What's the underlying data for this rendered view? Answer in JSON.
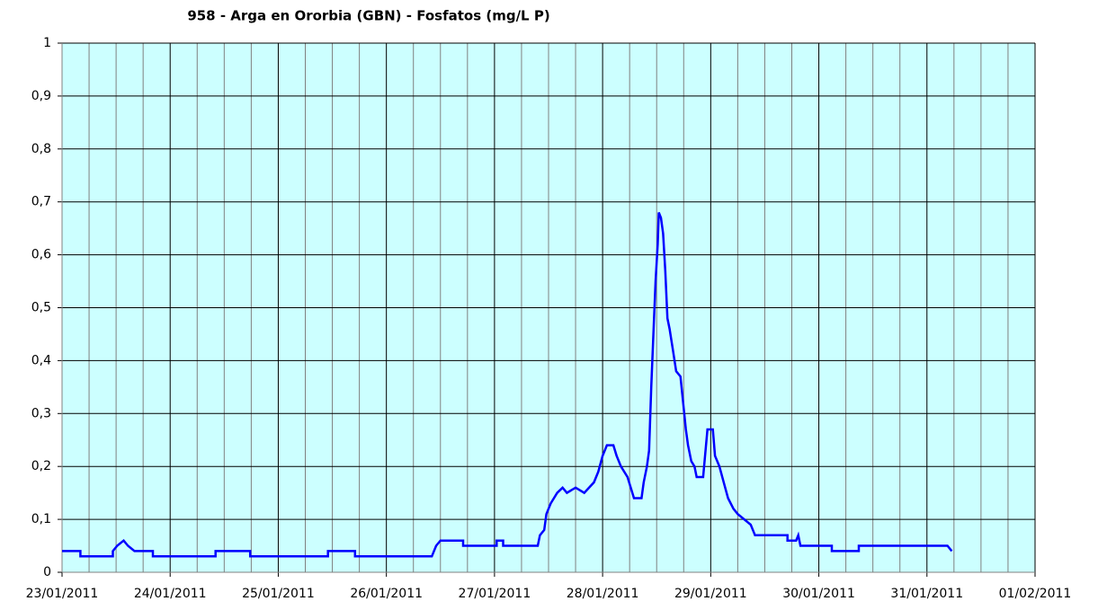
{
  "chart_data": {
    "type": "line",
    "title": "958 - Arga en Ororbia (GBN) - Fosfatos (mg/L P)",
    "x": [
      0,
      0.17,
      0.17,
      0.47,
      0.47,
      0.51,
      0.57,
      0.61,
      0.67,
      0.84,
      0.84,
      1.42,
      1.42,
      1.74,
      1.74,
      2.46,
      2.46,
      2.71,
      2.71,
      3.42,
      3.46,
      3.5,
      3.71,
      3.71,
      4.02,
      4.02,
      4.08,
      4.08,
      4.4,
      4.42,
      4.46,
      4.48,
      4.52,
      4.58,
      4.63,
      4.67,
      4.75,
      4.83,
      4.92,
      4.96,
      5.0,
      5.04,
      5.1,
      5.13,
      5.17,
      5.23,
      5.29,
      5.36,
      5.38,
      5.41,
      5.43,
      5.45,
      5.47,
      5.49,
      5.51,
      5.52,
      5.54,
      5.56,
      5.58,
      5.6,
      5.62,
      5.65,
      5.68,
      5.72,
      5.74,
      5.77,
      5.79,
      5.82,
      5.85,
      5.87,
      5.93,
      5.97,
      6.02,
      6.04,
      6.08,
      6.12,
      6.16,
      6.21,
      6.25,
      6.31,
      6.37,
      6.41,
      6.71,
      6.71,
      6.79,
      6.81,
      6.83,
      7.12,
      7.12,
      7.37,
      7.37,
      8.19,
      8.23
    ],
    "series": [
      {
        "name": "Fosfatos",
        "color": "#0000ff",
        "values": [
          0.04,
          0.04,
          0.03,
          0.03,
          0.04,
          0.05,
          0.06,
          0.05,
          0.04,
          0.04,
          0.03,
          0.03,
          0.04,
          0.04,
          0.03,
          0.03,
          0.04,
          0.04,
          0.03,
          0.03,
          0.05,
          0.06,
          0.06,
          0.05,
          0.05,
          0.06,
          0.06,
          0.05,
          0.05,
          0.07,
          0.08,
          0.11,
          0.13,
          0.15,
          0.16,
          0.15,
          0.16,
          0.15,
          0.17,
          0.19,
          0.22,
          0.24,
          0.24,
          0.22,
          0.2,
          0.18,
          0.14,
          0.14,
          0.17,
          0.2,
          0.23,
          0.35,
          0.45,
          0.55,
          0.62,
          0.68,
          0.67,
          0.64,
          0.57,
          0.48,
          0.46,
          0.42,
          0.38,
          0.37,
          0.33,
          0.27,
          0.24,
          0.21,
          0.2,
          0.18,
          0.18,
          0.27,
          0.27,
          0.22,
          0.2,
          0.17,
          0.14,
          0.12,
          0.11,
          0.1,
          0.09,
          0.07,
          0.07,
          0.06,
          0.06,
          0.07,
          0.05,
          0.05,
          0.04,
          0.04,
          0.05,
          0.05,
          0.04
        ]
      }
    ],
    "xlim": [
      0,
      9
    ],
    "xticks": [
      {
        "value": 0,
        "label": "23/01/2011"
      },
      {
        "value": 1,
        "label": "24/01/2011"
      },
      {
        "value": 2,
        "label": "25/01/2011"
      },
      {
        "value": 3,
        "label": "26/01/2011"
      },
      {
        "value": 4,
        "label": "27/01/2011"
      },
      {
        "value": 5,
        "label": "28/01/2011"
      },
      {
        "value": 6,
        "label": "29/01/2011"
      },
      {
        "value": 7,
        "label": "30/01/2011"
      },
      {
        "value": 8,
        "label": "31/01/2011"
      },
      {
        "value": 9,
        "label": "01/02/2011"
      }
    ],
    "ylim": [
      0,
      1
    ],
    "yticks": [
      0,
      {
        "value": 0.1,
        "label": "0,1"
      },
      {
        "value": 0.2,
        "label": "0,2"
      },
      {
        "value": 0.3,
        "label": "0,3"
      },
      {
        "value": 0.4,
        "label": "0,4"
      },
      {
        "value": 0.5,
        "label": "0,5"
      },
      {
        "value": 0.6,
        "label": "0,6"
      },
      {
        "value": 0.7,
        "label": "0,7"
      },
      {
        "value": 0.8,
        "label": "0,8"
      },
      {
        "value": 0.9,
        "label": "0,9"
      },
      1
    ],
    "grid": true,
    "background": "#ccffff"
  }
}
